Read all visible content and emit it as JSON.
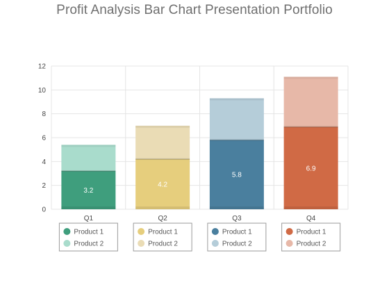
{
  "title": "Profit Analysis Bar Chart Presentation Portfolio",
  "chart_data": {
    "type": "bar",
    "stacked": true,
    "categories": [
      "Q1",
      "Q2",
      "Q3",
      "Q4"
    ],
    "ylim": [
      0,
      12
    ],
    "yticks": [
      0,
      2,
      4,
      6,
      8,
      10,
      12
    ],
    "grid": true,
    "series": [
      {
        "name": "Product 1",
        "values": [
          3.2,
          4.2,
          5.8,
          6.9
        ],
        "labels": [
          "3.2",
          "4.2",
          "5.8",
          "6.9"
        ]
      },
      {
        "name": "Product 2",
        "values": [
          2.2,
          2.8,
          3.5,
          4.2
        ]
      }
    ],
    "colors": {
      "Q1": {
        "product1": "#3f9e7d",
        "product2": "#a9dccc"
      },
      "Q2": {
        "product1": "#e6ce7d",
        "product2": "#eadcb5"
      },
      "Q3": {
        "product1": "#4a7f9e",
        "product2": "#b5cdd9"
      },
      "Q4": {
        "product1": "#d06a45",
        "product2": "#e7b8a8"
      }
    },
    "legend": {
      "placement": "below-each-bar",
      "items": [
        "Product 1",
        "Product 2"
      ]
    }
  }
}
